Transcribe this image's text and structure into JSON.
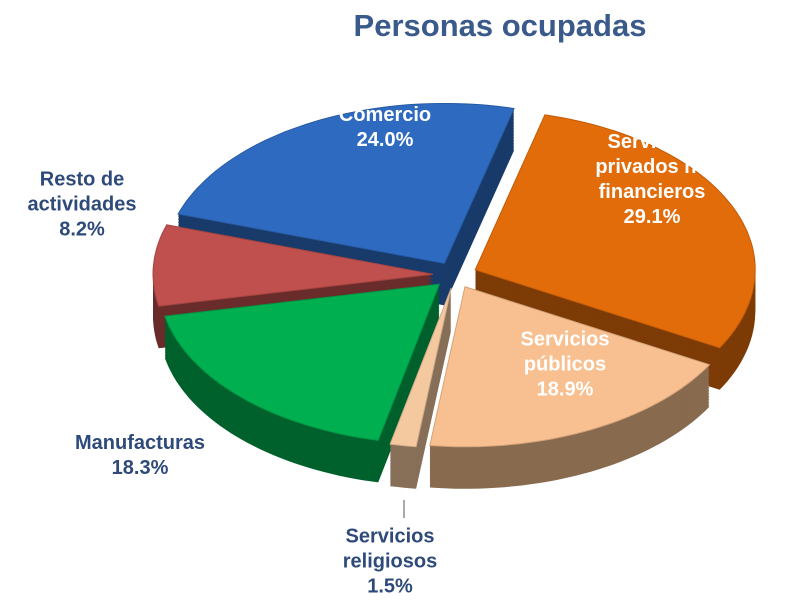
{
  "chart_data": {
    "type": "pie",
    "title": "Personas ocupadas",
    "categories": [
      "Comercio",
      "Servicios privados no financieros",
      "Servicios públicos",
      "Servicios religiosos",
      "Manufacturas",
      "Resto de actividades"
    ],
    "values": [
      24.0,
      29.1,
      18.9,
      1.5,
      18.3,
      8.2
    ],
    "value_labels": [
      "24.0%",
      "29.1%",
      "18.9%",
      "1.5%",
      "18.3%",
      "8.2%"
    ],
    "colors": [
      "#2e6bc0",
      "#e36c0a",
      "#f8c090",
      "#f5c9a0",
      "#00b050",
      "#c0504d"
    ]
  }
}
